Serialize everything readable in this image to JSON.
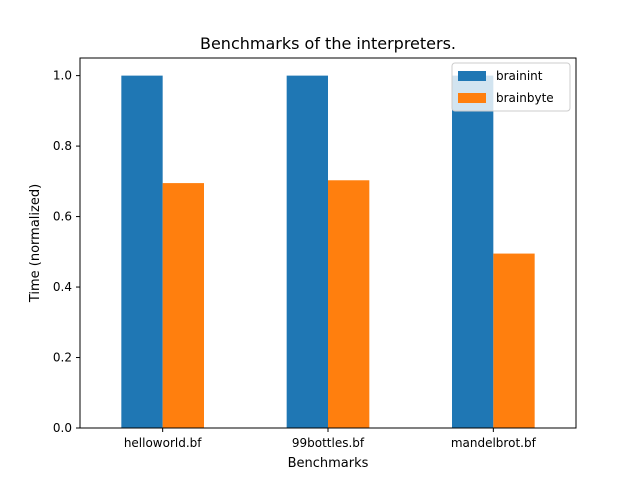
{
  "chart_data": {
    "type": "bar",
    "title": "Benchmarks of the interpreters.",
    "xlabel": "Benchmarks",
    "ylabel": "Time (normalized)",
    "categories": [
      "helloworld.bf",
      "99bottles.bf",
      "mandelbrot.bf"
    ],
    "series": [
      {
        "name": "brainint",
        "color": "#1f77b4",
        "values": [
          1.0,
          1.0,
          1.0
        ]
      },
      {
        "name": "brainbyte",
        "color": "#ff7f0e",
        "values": [
          0.695,
          0.703,
          0.495
        ]
      }
    ],
    "ylim": [
      0,
      1.05
    ],
    "yticks": [
      0.0,
      0.2,
      0.4,
      0.6,
      0.8,
      1.0
    ],
    "ytick_labels": [
      "0.0",
      "0.2",
      "0.4",
      "0.6",
      "0.8",
      "1.0"
    ],
    "grid": false,
    "legend_position": "top-right"
  }
}
